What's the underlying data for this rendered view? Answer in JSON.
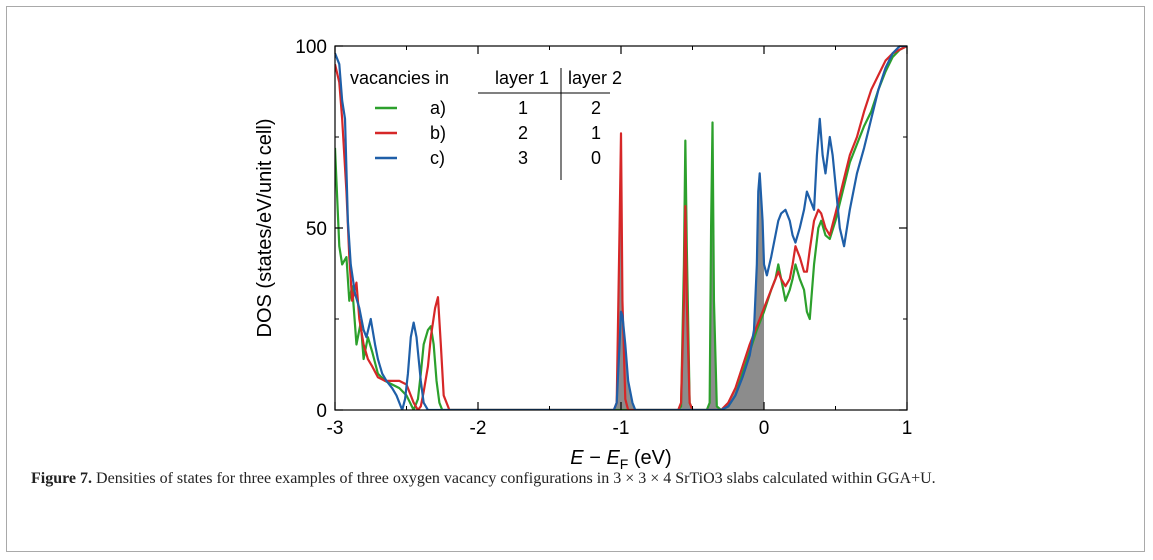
{
  "figure": {
    "caption_label": "Figure 7.",
    "caption_text": "Densities of states for three examples of three oxygen vacancy configurations in 3 × 3 × 4 SrTiO3 slabs calculated within GGA+U."
  },
  "chart_data": {
    "type": "line",
    "xlabel": "E − EF (eV)",
    "ylabel": "DOS (states/eV/unit cell)",
    "xlim": [
      -3,
      1
    ],
    "ylim": [
      0,
      100
    ],
    "x_ticks": [
      "-3",
      "-2",
      "-1",
      "0",
      "1"
    ],
    "y_ticks": [
      "0",
      "50",
      "100"
    ],
    "grid": false,
    "legend_position": "top-left",
    "legend_table": {
      "header": [
        "vacancies in",
        "layer 1",
        "layer 2"
      ],
      "rows": [
        {
          "label": "a)",
          "layer1": "1",
          "layer2": "2"
        },
        {
          "label": "b)",
          "layer1": "2",
          "layer2": "1"
        },
        {
          "label": "c)",
          "layer1": "3",
          "layer2": "0"
        }
      ]
    },
    "shaded_region": {
      "description": "occupied states up to EF",
      "color": "#8c8c8c"
    },
    "series": [
      {
        "name": "a)",
        "color": "#2ca02c",
        "x": [
          -3.0,
          -2.97,
          -2.95,
          -2.92,
          -2.9,
          -2.88,
          -2.85,
          -2.82,
          -2.8,
          -2.77,
          -2.74,
          -2.7,
          -2.65,
          -2.6,
          -2.55,
          -2.5,
          -2.45,
          -2.42,
          -2.4,
          -2.38,
          -2.35,
          -2.33,
          -2.31,
          -2.29,
          -2.27,
          -2.25,
          -2.2,
          -1.5,
          -1.0,
          -0.6,
          -0.58,
          -0.56,
          -0.55,
          -0.54,
          -0.52,
          -0.5,
          -0.4,
          -0.38,
          -0.37,
          -0.36,
          -0.35,
          -0.33,
          -0.3,
          -0.25,
          -0.2,
          -0.15,
          -0.1,
          -0.05,
          0.0,
          0.05,
          0.08,
          0.1,
          0.12,
          0.15,
          0.18,
          0.2,
          0.22,
          0.25,
          0.28,
          0.3,
          0.32,
          0.35,
          0.38,
          0.4,
          0.43,
          0.46,
          0.5,
          0.55,
          0.6,
          0.65,
          0.7,
          0.75,
          0.8,
          0.85,
          0.9,
          0.95,
          1.0
        ],
        "y": [
          72,
          45,
          40,
          42,
          30,
          34,
          18,
          24,
          14,
          20,
          16,
          10,
          8,
          7,
          6,
          4,
          0,
          3,
          10,
          18,
          22,
          23,
          18,
          8,
          2,
          0,
          0,
          0,
          0,
          0,
          1,
          40,
          74,
          45,
          2,
          0,
          0,
          2,
          50,
          79,
          30,
          1,
          0,
          1,
          4,
          10,
          16,
          22,
          27,
          33,
          36,
          40,
          36,
          30,
          33,
          36,
          40,
          36,
          33,
          27,
          25,
          40,
          50,
          52,
          48,
          47,
          52,
          60,
          68,
          73,
          78,
          82,
          88,
          93,
          97,
          99,
          100
        ]
      },
      {
        "name": "b)",
        "color": "#d62728",
        "x": [
          -3.0,
          -2.97,
          -2.95,
          -2.92,
          -2.9,
          -2.88,
          -2.85,
          -2.83,
          -2.8,
          -2.77,
          -2.74,
          -2.7,
          -2.65,
          -2.6,
          -2.55,
          -2.5,
          -2.45,
          -2.42,
          -2.4,
          -2.38,
          -2.35,
          -2.33,
          -2.3,
          -2.28,
          -2.26,
          -2.24,
          -2.2,
          -1.5,
          -1.05,
          -1.03,
          -1.01,
          -1.0,
          -0.99,
          -0.97,
          -0.95,
          -0.6,
          -0.58,
          -0.56,
          -0.55,
          -0.54,
          -0.52,
          -0.5,
          -0.3,
          -0.25,
          -0.2,
          -0.15,
          -0.1,
          -0.05,
          0.0,
          0.05,
          0.08,
          0.1,
          0.12,
          0.15,
          0.18,
          0.2,
          0.22,
          0.25,
          0.28,
          0.3,
          0.32,
          0.35,
          0.38,
          0.4,
          0.43,
          0.46,
          0.5,
          0.55,
          0.6,
          0.65,
          0.7,
          0.75,
          0.8,
          0.85,
          0.9,
          0.95,
          1.0
        ],
        "y": [
          95,
          90,
          80,
          60,
          42,
          30,
          35,
          25,
          18,
          14,
          12,
          9,
          8,
          8,
          8,
          7,
          2,
          0,
          1,
          5,
          12,
          20,
          28,
          31,
          18,
          4,
          0,
          0,
          0,
          2,
          50,
          76,
          30,
          3,
          0,
          0,
          2,
          30,
          56,
          30,
          2,
          0,
          0,
          2,
          6,
          12,
          18,
          23,
          28,
          33,
          36,
          38,
          36,
          34,
          36,
          40,
          45,
          42,
          38,
          38,
          44,
          52,
          55,
          54,
          50,
          48,
          54,
          62,
          70,
          75,
          82,
          88,
          92,
          96,
          98,
          99,
          100
        ]
      },
      {
        "name": "c)",
        "color": "#1f5fa8",
        "x": [
          -3.0,
          -2.97,
          -2.95,
          -2.93,
          -2.91,
          -2.89,
          -2.86,
          -2.83,
          -2.8,
          -2.78,
          -2.75,
          -2.72,
          -2.7,
          -2.67,
          -2.64,
          -2.62,
          -2.6,
          -2.57,
          -2.55,
          -2.53,
          -2.51,
          -2.49,
          -2.47,
          -2.45,
          -2.43,
          -2.4,
          -2.38,
          -2.35,
          -2.3,
          -1.5,
          -1.05,
          -1.03,
          -1.01,
          -1.0,
          -0.99,
          -0.97,
          -0.95,
          -0.92,
          -0.9,
          -0.85,
          -0.3,
          -0.25,
          -0.2,
          -0.15,
          -0.1,
          -0.07,
          -0.05,
          -0.04,
          -0.03,
          -0.01,
          0.0,
          0.02,
          0.05,
          0.08,
          0.1,
          0.12,
          0.15,
          0.18,
          0.2,
          0.22,
          0.25,
          0.28,
          0.3,
          0.32,
          0.35,
          0.37,
          0.39,
          0.41,
          0.43,
          0.46,
          0.48,
          0.5,
          0.53,
          0.56,
          0.6,
          0.65,
          0.7,
          0.75,
          0.8,
          0.85,
          0.9,
          0.95,
          1.0
        ],
        "y": [
          98,
          95,
          85,
          80,
          52,
          40,
          32,
          28,
          22,
          20,
          25,
          18,
          14,
          10,
          8,
          7,
          6,
          4,
          2,
          0,
          3,
          10,
          20,
          24,
          20,
          8,
          2,
          0,
          0,
          0,
          0,
          2,
          18,
          27,
          26,
          18,
          8,
          2,
          0,
          0,
          0,
          1,
          4,
          9,
          15,
          22,
          40,
          60,
          65,
          52,
          40,
          37,
          42,
          48,
          52,
          54,
          55,
          52,
          48,
          46,
          50,
          55,
          60,
          58,
          55,
          70,
          80,
          70,
          65,
          75,
          70,
          62,
          50,
          45,
          55,
          65,
          72,
          80,
          88,
          94,
          98,
          100,
          100
        ]
      }
    ]
  }
}
